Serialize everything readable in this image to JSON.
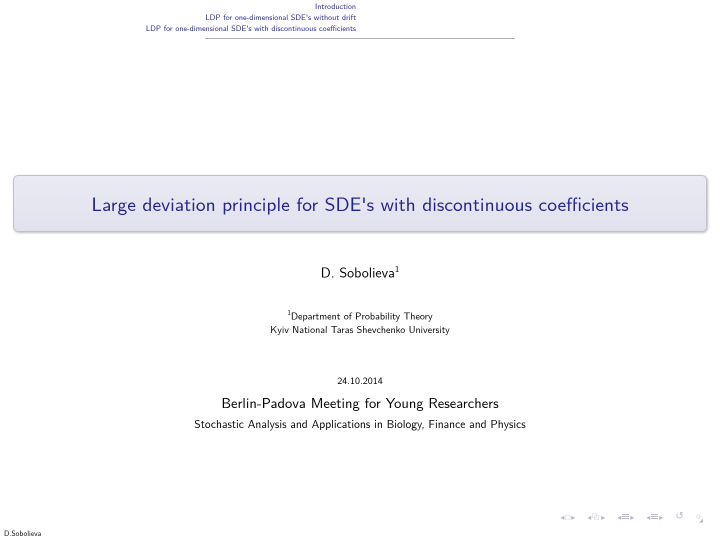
{
  "header": {
    "nav_items": [
      "Introduction",
      "LDP for one-dimensional SDE's without drift",
      "LDP for one-dimensional SDE's with discontinuous coefficients"
    ]
  },
  "title": "Large deviation principle for SDE's with discontinuous coefficients",
  "author": {
    "name": "D. Sobolieva",
    "sup": "1"
  },
  "affiliation": {
    "sup": "1",
    "dept": "Department of Probability Theory",
    "inst": "Kyiv National Taras Shevchenko University"
  },
  "date": "24.10.2014",
  "meeting": "Berlin-Padova Meeting for Young Researchers",
  "subtitle": "Stochastic Analysis and Applications in Biology, Finance and Physics",
  "footer": {
    "author_short": "D.Sobolieva"
  },
  "colors": {
    "link_blue": "#23238e",
    "nav_icon_gray": "#b8b8c8",
    "title_bg_top": "#eaeaf4",
    "title_bg_bot": "#e2e2ee",
    "title_border": "#c0c0c8",
    "underline": "#b0b0b0",
    "background": "#ffffff"
  }
}
